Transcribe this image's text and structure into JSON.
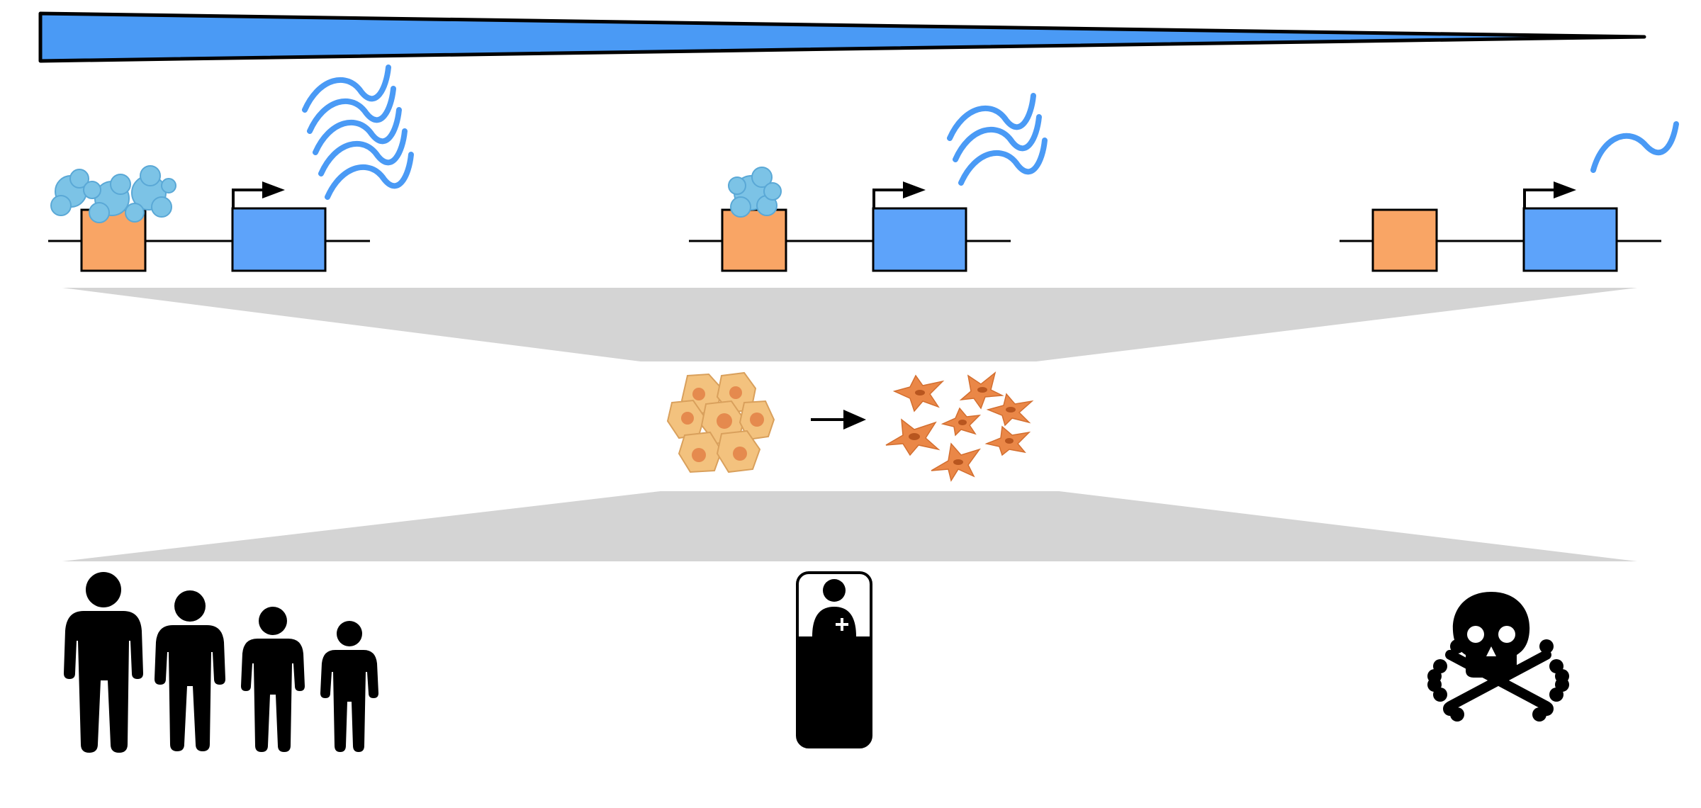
{
  "colors": {
    "gradient_wedge": "#4A9AF5",
    "gene_box": "#5DA3FA",
    "regulatory_box": "#F9A565",
    "protein": "#7CC3E6",
    "mrna_wave": "#4A9AF5",
    "funnel": "#D4D4D4",
    "epithelial_cell": "#F3C27E",
    "epithelial_nucleus": "#E58A4E",
    "mesenchymal_cell": "#EA8747",
    "silhouette": "#000000"
  },
  "panels": {
    "molecular": [
      {
        "name": "high-binding",
        "protein_count": 3,
        "mrna_waves": 4
      },
      {
        "name": "medium-binding",
        "protein_count": 1,
        "mrna_waves": 3
      },
      {
        "name": "no-binding",
        "protein_count": 0,
        "mrna_waves": 1
      }
    ],
    "cellular": {
      "from": "epithelial-cluster",
      "to": "mesenchymal-cells"
    },
    "organism": [
      "healthy-family-icon",
      "patient-in-bed-icon",
      "skull-crossbones-icon"
    ]
  }
}
